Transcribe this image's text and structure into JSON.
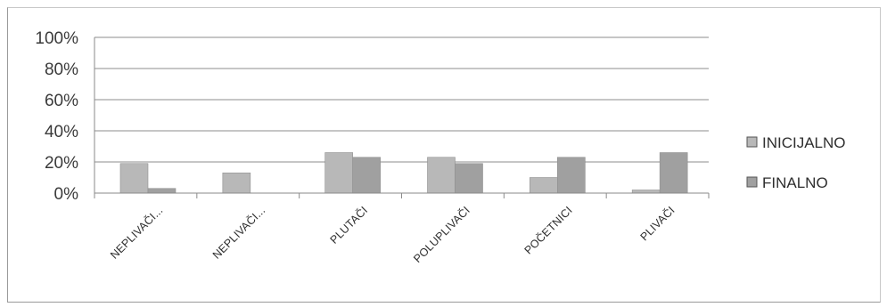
{
  "chart_data": {
    "type": "bar",
    "categories": [
      "NEPLIVAČI...",
      "NEPLIVAČI...",
      "PLUTAČI",
      "POLUPLIVAČI",
      "POČETNICI",
      "PLIVAČI"
    ],
    "series": [
      {
        "name": "INICIJALNO",
        "values": [
          19,
          13,
          26,
          23,
          10,
          2
        ],
        "color": "#b8b8b8"
      },
      {
        "name": "FINALNO",
        "values": [
          3,
          0,
          23,
          19,
          23,
          26
        ],
        "color": "#a0a0a0"
      }
    ],
    "y_tick_labels": [
      "0%",
      "20%",
      "40%",
      "60%",
      "80%",
      "100%"
    ],
    "ylim": [
      0,
      100
    ],
    "grid": true,
    "legend_position": "right",
    "title": "",
    "xlabel": "",
    "ylabel": ""
  }
}
